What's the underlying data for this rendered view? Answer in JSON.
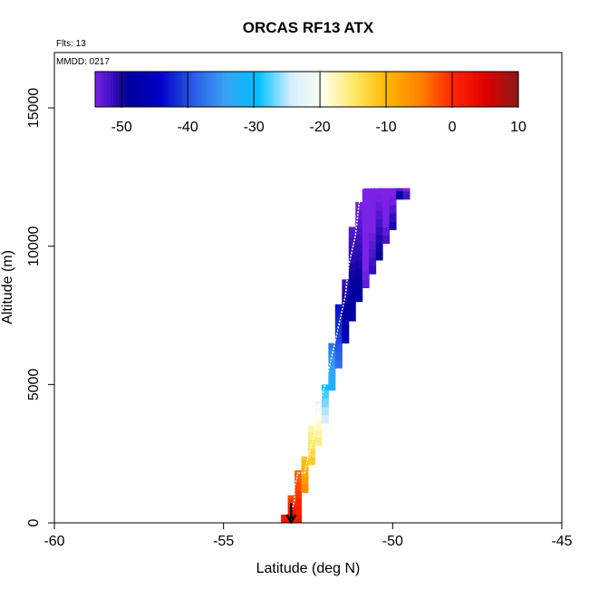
{
  "chart_data": {
    "type": "heatmap",
    "title": "ORCAS RF13 ATX",
    "annotations": [
      "Flts: 13",
      "MMDD: 0217"
    ],
    "xlabel": "Latitude (deg N)",
    "ylabel": "Altitude (m)",
    "xlim": [
      -60,
      -45
    ],
    "ylim": [
      0,
      17000
    ],
    "xticks": [
      "-60",
      "-55",
      "-50",
      "-45"
    ],
    "yticks": [
      "0",
      "5000",
      "10000",
      "15000"
    ],
    "colorbar": {
      "range": [
        -54,
        10
      ],
      "ticks": [
        "-50",
        "-40",
        "-30",
        "-20",
        "-10",
        "0",
        "10"
      ],
      "colors": [
        "#7b22e6",
        "#00009a",
        "#0000c8",
        "#2a5ae6",
        "#38a2f5",
        "#00bfff",
        "#d2eeff",
        "#ffffee",
        "#ffe860",
        "#ffb400",
        "#ff8000",
        "#ff2400",
        "#e00000",
        "#8c1a1a"
      ]
    },
    "columns": [
      {
        "lat": -53.2,
        "ymin": 0,
        "ymax": 300,
        "value": 4
      },
      {
        "lat": -53.0,
        "ymin": 0,
        "ymax": 1000,
        "value": 3
      },
      {
        "lat": -52.8,
        "ymin": 0,
        "ymax": 1900,
        "value": 0
      },
      {
        "lat": -52.6,
        "ymin": 1100,
        "ymax": 2400,
        "value": -4
      },
      {
        "lat": -52.4,
        "ymin": 2100,
        "ymax": 3500,
        "value": -12
      },
      {
        "lat": -52.2,
        "ymin": 2800,
        "ymax": 4400,
        "value": -18
      },
      {
        "lat": -52.0,
        "ymin": 3600,
        "ymax": 5000,
        "value": -22
      },
      {
        "lat": -51.8,
        "ymin": 4800,
        "ymax": 6500,
        "value": -32
      },
      {
        "lat": -51.6,
        "ymin": 5600,
        "ymax": 7900,
        "value": -40
      },
      {
        "lat": -51.4,
        "ymin": 6500,
        "ymax": 8800,
        "value": -44
      },
      {
        "lat": -51.2,
        "ymin": 7300,
        "ymax": 10700,
        "value": -47
      },
      {
        "lat": -51.0,
        "ymin": 8000,
        "ymax": 11600,
        "value": -50
      },
      {
        "lat": -50.8,
        "ymin": 8500,
        "ymax": 12100,
        "value": -51
      },
      {
        "lat": -50.6,
        "ymin": 9000,
        "ymax": 12100,
        "value": -51
      },
      {
        "lat": -50.4,
        "ymin": 9500,
        "ymax": 12100,
        "value": -51
      },
      {
        "lat": -50.2,
        "ymin": 10100,
        "ymax": 12100,
        "value": -50
      },
      {
        "lat": -50.0,
        "ymin": 10600,
        "ymax": 12100,
        "value": -50
      },
      {
        "lat": -49.8,
        "ymin": 11700,
        "ymax": 12100,
        "value": -50
      },
      {
        "lat": -49.6,
        "ymin": 11700,
        "ymax": 12100,
        "value": -50
      }
    ],
    "flight_track": [
      [
        -53.0,
        0
      ],
      [
        -53.0,
        400
      ],
      [
        -52.9,
        800
      ],
      [
        -52.9,
        1300
      ],
      [
        -52.8,
        1800
      ],
      [
        -52.6,
        1800
      ],
      [
        -52.5,
        2400
      ],
      [
        -52.3,
        3300
      ],
      [
        -52.2,
        4100
      ],
      [
        -52.0,
        5000
      ],
      [
        -51.8,
        6000
      ],
      [
        -51.6,
        7100
      ],
      [
        -51.4,
        8200
      ],
      [
        -51.3,
        9300
      ],
      [
        -51.1,
        10400
      ],
      [
        -51.0,
        11500
      ],
      [
        -50.9,
        12100
      ],
      [
        -50.0,
        12150
      ],
      [
        -49.6,
        12150
      ]
    ],
    "takeoff_marker": {
      "lat": -53.0,
      "alt": 0
    }
  }
}
